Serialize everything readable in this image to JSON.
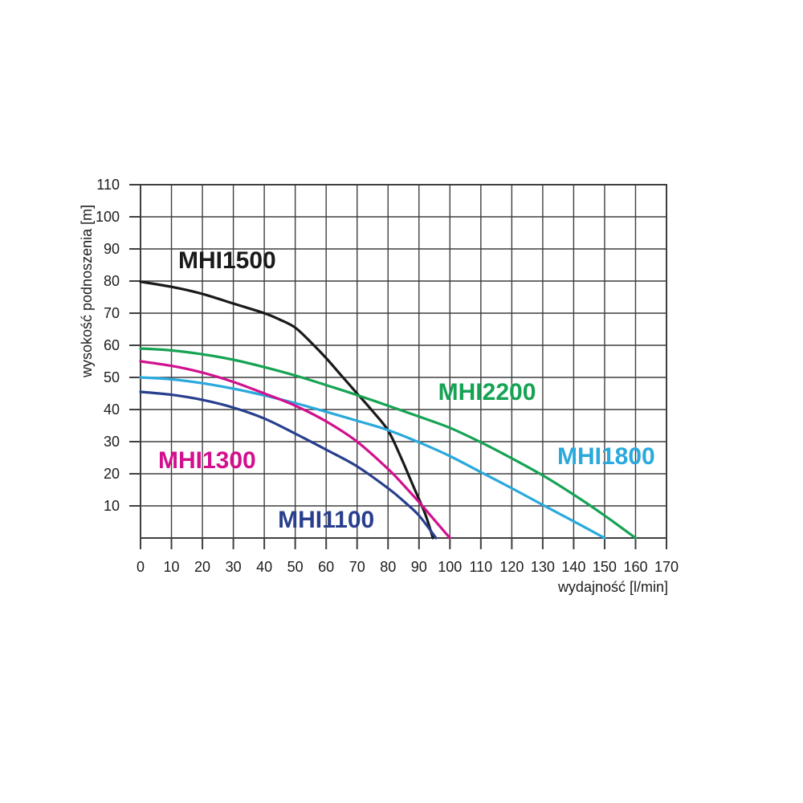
{
  "chart_data": {
    "type": "line",
    "title": "",
    "xlabel": "wydajność [l/min]",
    "ylabel": "wysokość podnoszenia [m]",
    "xlim": [
      0,
      170
    ],
    "ylim": [
      0,
      110
    ],
    "x_ticks": [
      0,
      10,
      20,
      30,
      40,
      50,
      60,
      70,
      80,
      90,
      100,
      110,
      120,
      130,
      140,
      150,
      160,
      170
    ],
    "y_ticks": [
      10,
      20,
      30,
      40,
      50,
      60,
      70,
      80,
      90,
      100,
      110
    ],
    "grid": true,
    "legend_position": "labels-on-chart",
    "grid_color": "#3f3f3f",
    "text_color": "#1c1c1c",
    "series": [
      {
        "name": "MHI1500",
        "color": "#1a1a1a",
        "label_x": 28,
        "label_y": 86.5,
        "points": [
          [
            0,
            79.8
          ],
          [
            10,
            78.2
          ],
          [
            20,
            76
          ],
          [
            30,
            73
          ],
          [
            40,
            70
          ],
          [
            45,
            68
          ],
          [
            50,
            65.5
          ],
          [
            55,
            61
          ],
          [
            60,
            56
          ],
          [
            65,
            50.5
          ],
          [
            70,
            45
          ],
          [
            75,
            39.5
          ],
          [
            80,
            33.5
          ],
          [
            84,
            25.5
          ],
          [
            88,
            16.5
          ],
          [
            92,
            7.5
          ],
          [
            94.5,
            0
          ]
        ]
      },
      {
        "name": "MHI2200",
        "color": "#16a354",
        "label_x": 112,
        "label_y": 45.5,
        "points": [
          [
            0,
            59
          ],
          [
            10,
            58.4
          ],
          [
            20,
            57.2
          ],
          [
            30,
            55.5
          ],
          [
            40,
            53.2
          ],
          [
            50,
            50.6
          ],
          [
            60,
            47.6
          ],
          [
            70,
            44.5
          ],
          [
            80,
            41.2
          ],
          [
            90,
            37.8
          ],
          [
            100,
            34.3
          ],
          [
            110,
            29.8
          ],
          [
            120,
            24.8
          ],
          [
            130,
            19.5
          ],
          [
            140,
            13.5
          ],
          [
            150,
            7
          ],
          [
            160,
            0
          ]
        ]
      },
      {
        "name": "MHI1800",
        "color": "#2aa9dc",
        "label_x": 150.5,
        "label_y": 25.5,
        "points": [
          [
            0,
            50
          ],
          [
            10,
            49.4
          ],
          [
            20,
            48.2
          ],
          [
            30,
            46.5
          ],
          [
            40,
            44.4
          ],
          [
            50,
            42
          ],
          [
            60,
            39.3
          ],
          [
            70,
            36.5
          ],
          [
            80,
            33.6
          ],
          [
            90,
            29.8
          ],
          [
            100,
            25.5
          ],
          [
            110,
            20.5
          ],
          [
            120,
            15.5
          ],
          [
            130,
            10.3
          ],
          [
            140,
            5.2
          ],
          [
            150,
            0
          ]
        ]
      },
      {
        "name": "MHI1300",
        "color": "#d2108d",
        "label_x": 21.5,
        "label_y": 24.3,
        "points": [
          [
            0,
            55
          ],
          [
            10,
            53.6
          ],
          [
            20,
            51.5
          ],
          [
            30,
            48.6
          ],
          [
            40,
            45
          ],
          [
            50,
            41.2
          ],
          [
            60,
            36.3
          ],
          [
            70,
            30
          ],
          [
            80,
            21.5
          ],
          [
            85,
            16.5
          ],
          [
            90,
            11.2
          ],
          [
            95,
            5.6
          ],
          [
            100,
            0
          ]
        ]
      },
      {
        "name": "MHI1100",
        "color": "#293f8e",
        "label_x": 60,
        "label_y": 5.8,
        "points": [
          [
            0,
            45.5
          ],
          [
            10,
            44.6
          ],
          [
            20,
            43
          ],
          [
            30,
            40.6
          ],
          [
            40,
            37.2
          ],
          [
            50,
            32.5
          ],
          [
            60,
            27.5
          ],
          [
            70,
            22.3
          ],
          [
            80,
            15.5
          ],
          [
            85,
            11.5
          ],
          [
            90,
            7
          ],
          [
            95.5,
            0
          ]
        ]
      }
    ]
  }
}
